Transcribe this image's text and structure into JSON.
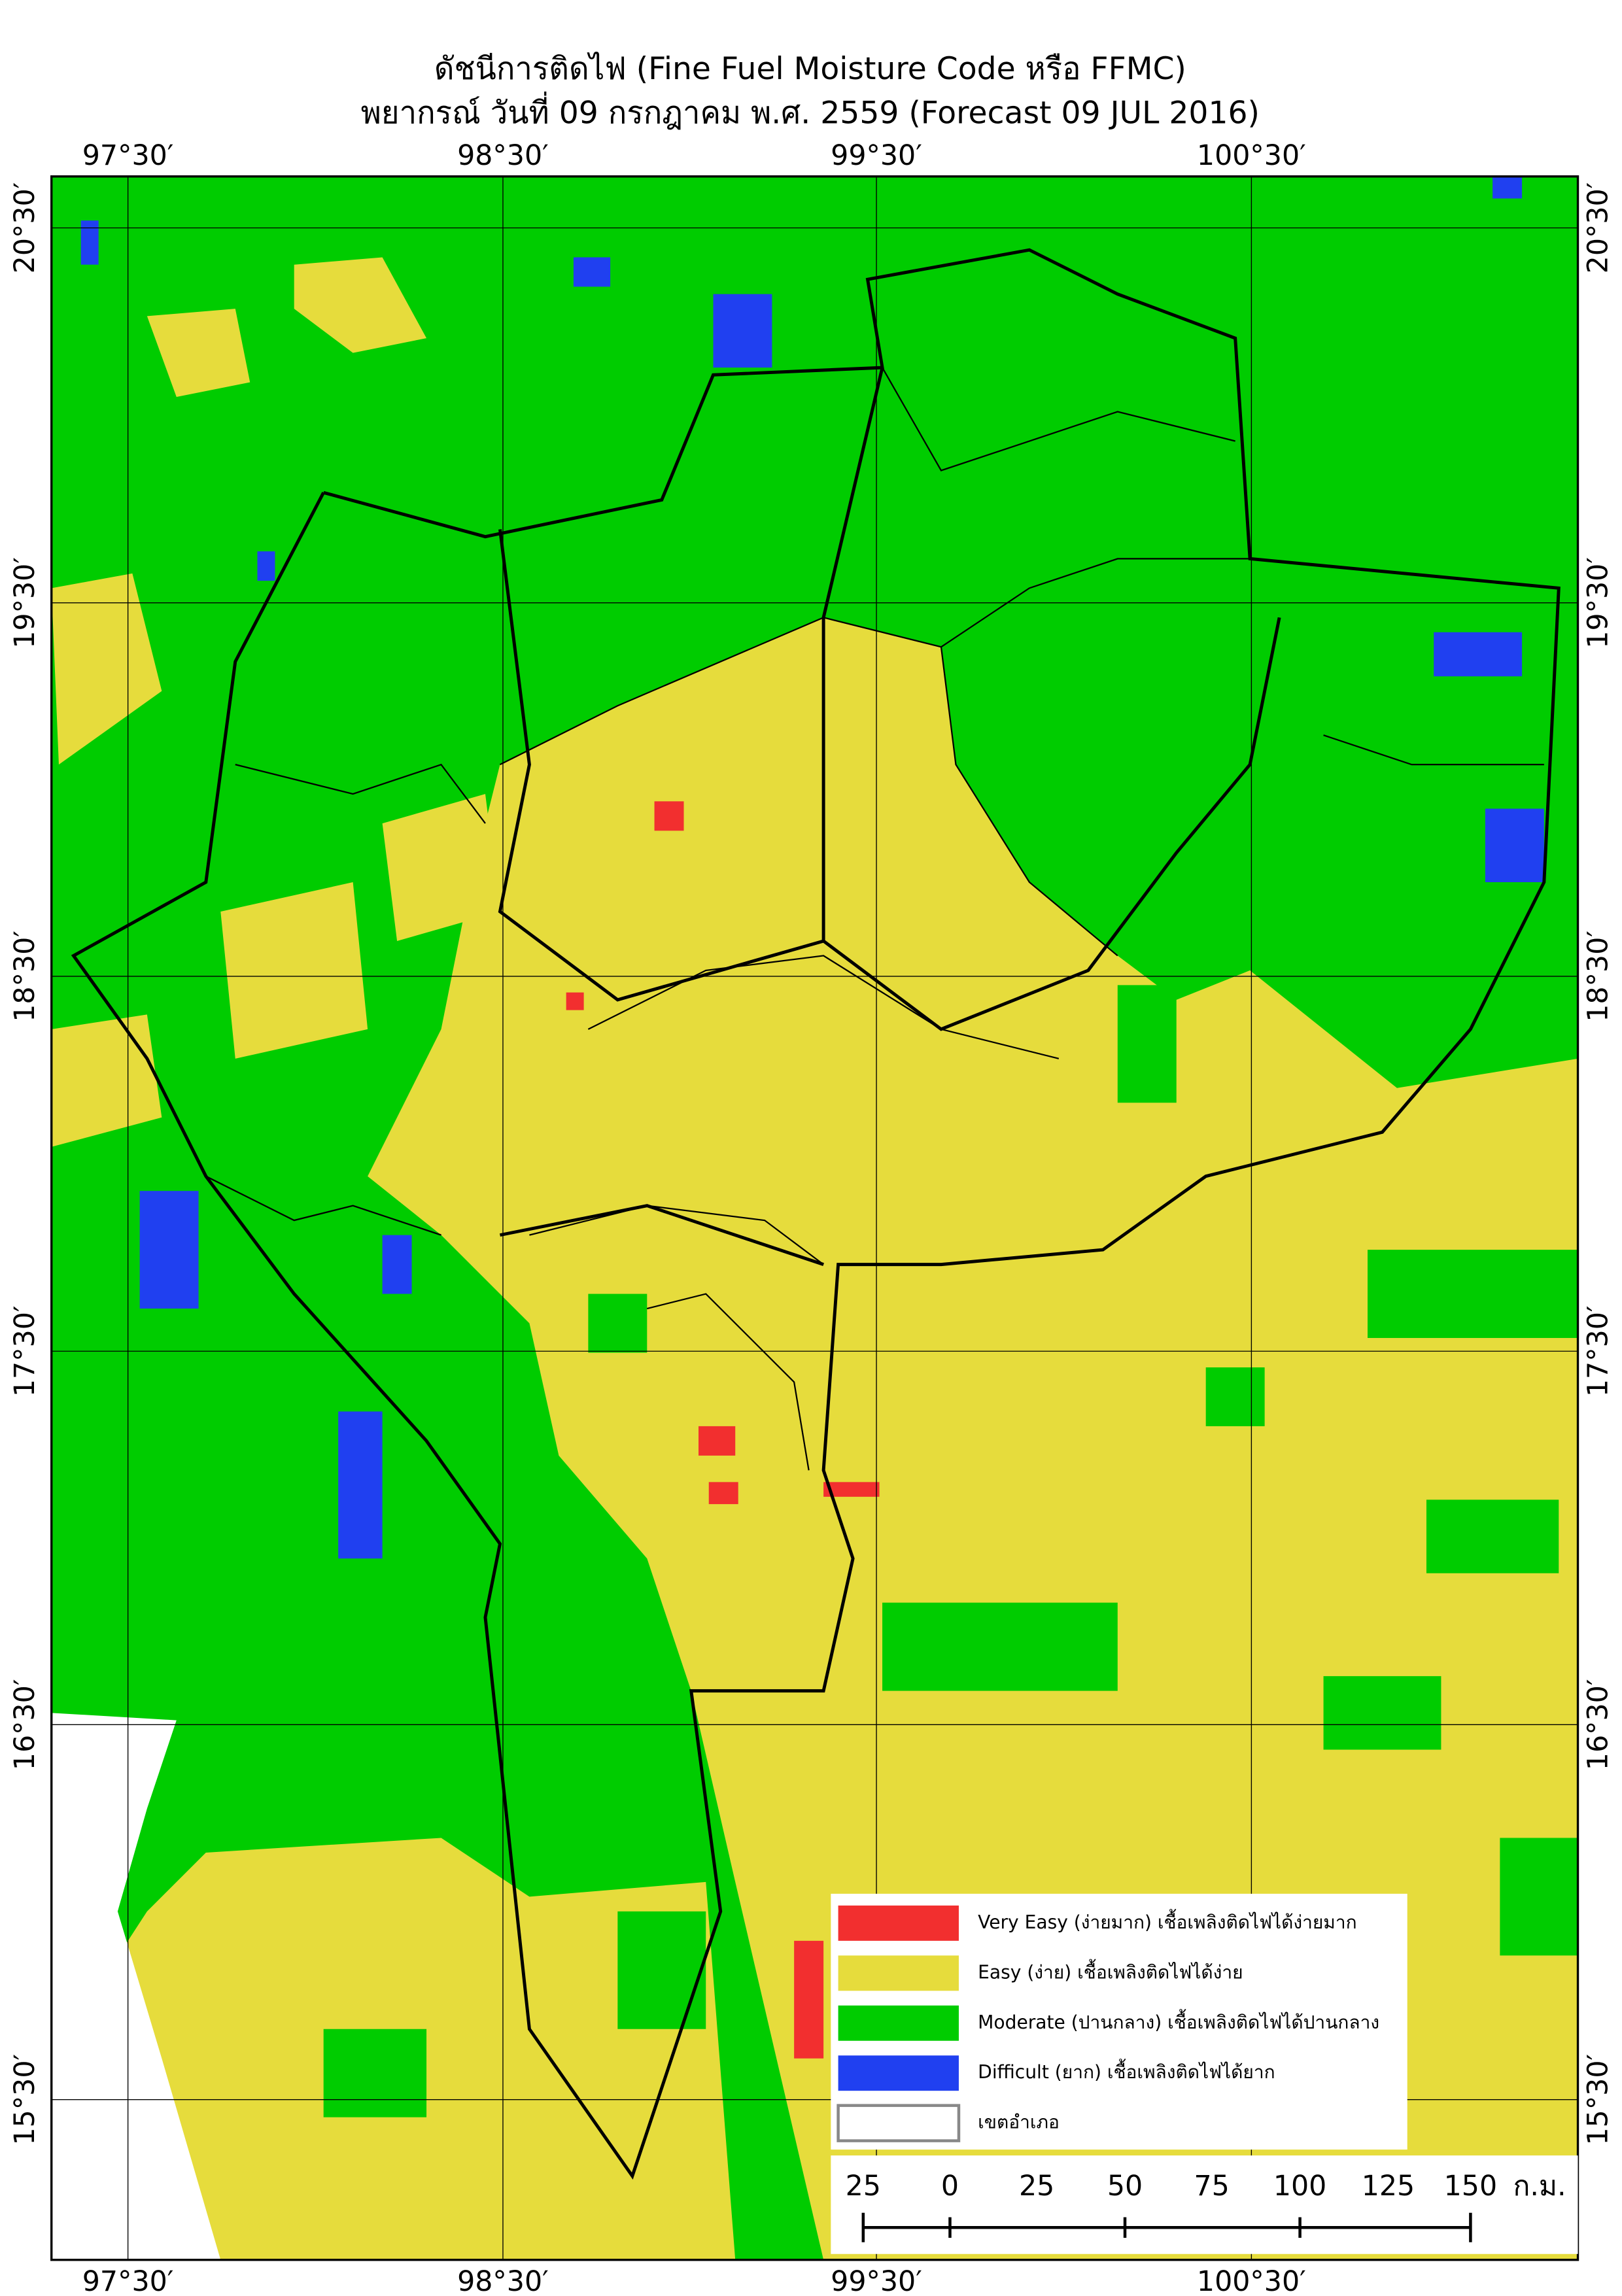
{
  "map": {
    "title": "ดัชนีการติดไฟ (Fine Fuel Moisture Code หรือ FFMC)",
    "subtitle": "พยากรณ์ วันที่ 09 กรกฎาคม พ.ศ. 2559 (Forecast 09 JUL 2016)",
    "longitude_labels": [
      "97°30′",
      "98°30′",
      "99°30′",
      "100°30′"
    ],
    "latitude_labels": [
      "20°30′",
      "19°30′",
      "18°30′",
      "17°30′",
      "16°30′",
      "15°30′"
    ],
    "legend": [
      {
        "label": "Very Easy (ง่ายมาก) เชื้อเพลิงติดไฟได้ง่ายมาก",
        "color": "#f22f2f"
      },
      {
        "label": "Easy (ง่าย) เชื้อเพลิงติดไฟได้ง่าย",
        "color": "#e6dc3c"
      },
      {
        "label": "Moderate (ปานกลาง) เชื้อเพลิงติดไฟได้ปานกลาง",
        "color": "#00cc00"
      },
      {
        "label": "Difficult (ยาก) เชื้อเพลิงติดไฟได้ยาก",
        "color": "#2040f0"
      },
      {
        "label": "เขตอำเภอ",
        "color": "#ffffff"
      }
    ],
    "scale_bar": {
      "labels": [
        "25",
        "0",
        "25",
        "50",
        "75",
        "100",
        "125",
        "150"
      ],
      "unit": "ก.ม."
    }
  }
}
